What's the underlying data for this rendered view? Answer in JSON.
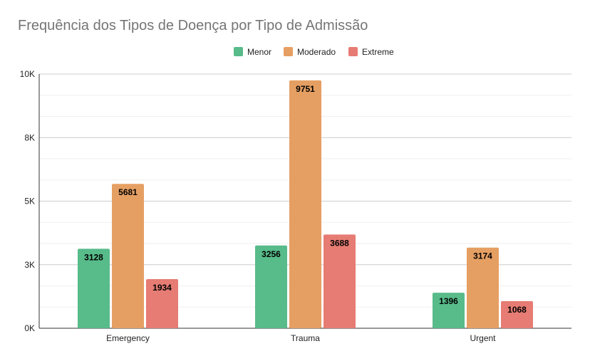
{
  "chart_data": {
    "type": "bar",
    "title": "Frequência dos Tipos de Doença por Tipo de Admissão",
    "xlabel": "",
    "ylabel": "",
    "categories": [
      "Emergency",
      "Trauma",
      "Urgent"
    ],
    "series": [
      {
        "name": "Menor",
        "color": "#57bb8a",
        "values": [
          3128,
          3256,
          1396
        ]
      },
      {
        "name": "Moderado",
        "color": "#e69f63",
        "values": [
          5681,
          9751,
          3174
        ]
      },
      {
        "name": "Extreme",
        "color": "#e67c73",
        "values": [
          1934,
          3688,
          1068
        ]
      }
    ],
    "ylim": [
      0,
      10000
    ],
    "yticks": [
      {
        "value": 0,
        "label": "0K"
      },
      {
        "value": 2500,
        "label": "3K"
      },
      {
        "value": 5000,
        "label": "5K"
      },
      {
        "value": 7500,
        "label": "8K"
      },
      {
        "value": 10000,
        "label": "10K"
      }
    ],
    "minor_gridlines": true,
    "legend_position": "top-center",
    "data_labels": true
  }
}
